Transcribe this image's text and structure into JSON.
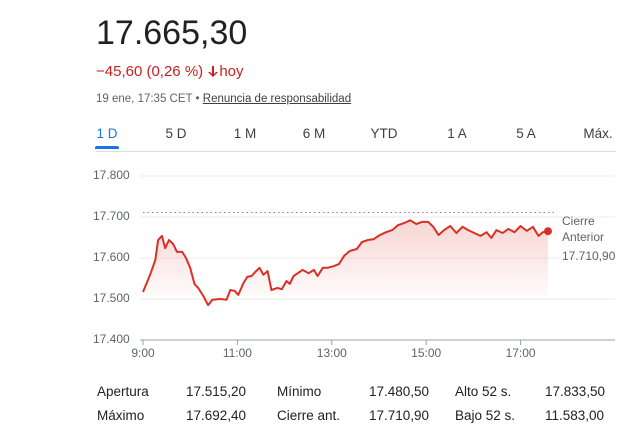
{
  "header": {
    "price": "17.665,30",
    "change": "−45,60 (0,26 %)",
    "period": "hoy",
    "date": "19 ene, 17:35 CET",
    "disclaimer": "Renuncia de responsabilidad"
  },
  "tabs": [
    "1 D",
    "5 D",
    "1 M",
    "6 M",
    "YTD",
    "1 A",
    "5 A",
    "Máx."
  ],
  "chart_data": {
    "type": "line",
    "color": "#d93025",
    "x": [
      9.0,
      9.15,
      9.26,
      9.32,
      9.4,
      9.47,
      9.55,
      9.64,
      9.72,
      9.83,
      9.91,
      10.0,
      10.09,
      10.17,
      10.28,
      10.38,
      10.47,
      10.64,
      10.77,
      10.85,
      10.94,
      11.02,
      11.13,
      11.21,
      11.3,
      11.38,
      11.47,
      11.55,
      11.64,
      11.72,
      11.85,
      11.94,
      12.04,
      12.11,
      12.19,
      12.28,
      12.38,
      12.51,
      12.62,
      12.7,
      12.81,
      12.91,
      13.04,
      13.15,
      13.26,
      13.38,
      13.53,
      13.64,
      13.77,
      13.89,
      14.02,
      14.15,
      14.28,
      14.4,
      14.53,
      14.66,
      14.79,
      14.91,
      15.04,
      15.15,
      15.26,
      15.38,
      15.51,
      15.64,
      15.77,
      15.89,
      16.02,
      16.15,
      16.28,
      16.38,
      16.49,
      16.62,
      16.74,
      16.87,
      17.0,
      17.13,
      17.26,
      17.38,
      17.47,
      17.58
    ],
    "values": [
      17517,
      17559,
      17595,
      17644,
      17654,
      17624,
      17644,
      17634,
      17615,
      17615,
      17600,
      17576,
      17537,
      17527,
      17507,
      17485,
      17498,
      17500,
      17498,
      17522,
      17520,
      17510,
      17539,
      17554,
      17556,
      17566,
      17576,
      17559,
      17568,
      17522,
      17527,
      17524,
      17544,
      17537,
      17556,
      17563,
      17571,
      17563,
      17571,
      17556,
      17576,
      17576,
      17580,
      17585,
      17605,
      17617,
      17622,
      17639,
      17644,
      17646,
      17656,
      17663,
      17668,
      17680,
      17685,
      17692,
      17683,
      17688,
      17688,
      17676,
      17656,
      17668,
      17678,
      17661,
      17676,
      17668,
      17661,
      17654,
      17663,
      17649,
      17668,
      17661,
      17671,
      17663,
      17678,
      17666,
      17676,
      17654,
      17663,
      17665.3
    ],
    "xlim": [
      9,
      19
    ],
    "xticks": [
      {
        "value": 9,
        "label": "9:00"
      },
      {
        "value": 11,
        "label": "11:00"
      },
      {
        "value": 13,
        "label": "13:00"
      },
      {
        "value": 15,
        "label": "15:00"
      },
      {
        "value": 17,
        "label": "17:00"
      }
    ],
    "ylim": [
      17400,
      17800
    ],
    "yticks": [
      {
        "value": 17400,
        "label": "17.400"
      },
      {
        "value": 17500,
        "label": "17.500"
      },
      {
        "value": 17600,
        "label": "17.600"
      },
      {
        "value": 17700,
        "label": "17.700"
      },
      {
        "value": 17800,
        "label": "17.800"
      }
    ],
    "grid": true,
    "reference": {
      "value": 17710.9,
      "label": "Cierre Anterior",
      "value_label": "17.710,90"
    }
  },
  "stats": {
    "rows": [
      [
        "Apertura",
        "17.515,20",
        "Mínimo",
        "17.480,50",
        "Alto 52 s.",
        "17.833,50"
      ],
      [
        "Máximo",
        "17.692,40",
        "Cierre ant.",
        "17.710,90",
        "Bajo 52 s.",
        "11.583,00"
      ]
    ]
  }
}
